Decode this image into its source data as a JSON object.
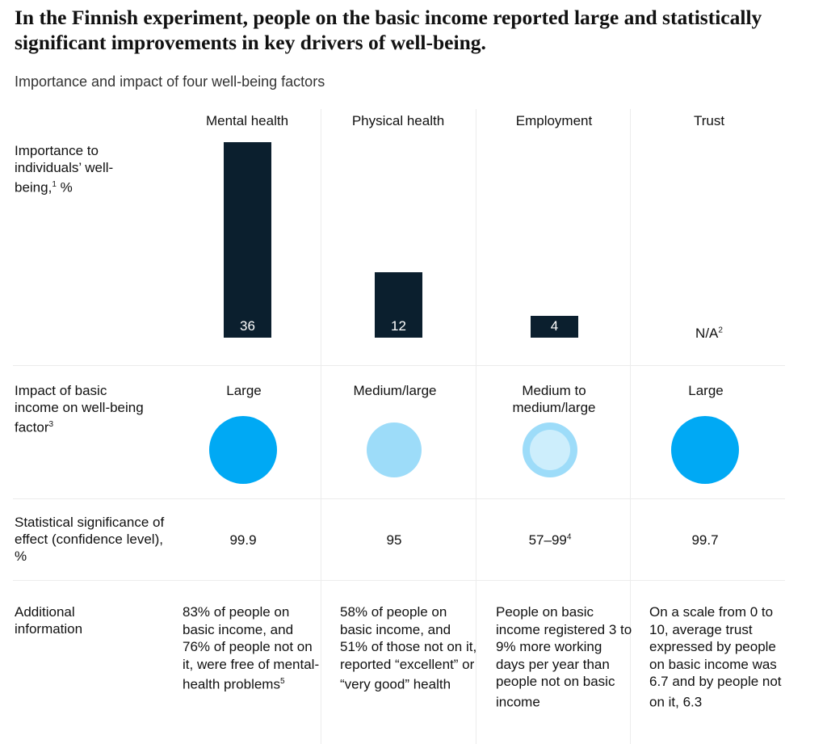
{
  "title": "In the Finnish experiment, people on the basic income reported large and statistically significant improvements in key drivers of well-being.",
  "subtitle": "Importance and impact of four well-being factors",
  "row_labels": {
    "importance": "Importance to individuals’ well-being,",
    "importance_sup": "1",
    "importance_unit": " %",
    "impact": "Impact of basic income on well-being factor",
    "impact_sup": "3",
    "significance": "Statistical significance of effect (confidence level), %",
    "additional": "Additional information"
  },
  "colors": {
    "bar": "#0b1f2e",
    "large": "#00a9f4",
    "medium_large": "#9ddcf9",
    "medium_inner": "#cdeefc"
  },
  "chart_data": {
    "type": "bar",
    "categories": [
      "Mental health",
      "Physical health",
      "Employment",
      "Trust"
    ],
    "values": [
      36,
      12,
      4,
      null
    ],
    "value_labels": [
      "36",
      "12",
      "4",
      "N/A"
    ],
    "na_sup": "2",
    "ylim": [
      0,
      36
    ],
    "impact": [
      {
        "label": "Large",
        "level": "large"
      },
      {
        "label": "Medium/large",
        "level": "medium_large"
      },
      {
        "label": "Medium to medium/large",
        "level": "medium_to_medium_large"
      },
      {
        "label": "Large",
        "level": "large"
      }
    ],
    "significance": [
      {
        "value": "99.9",
        "sup": ""
      },
      {
        "value": "95",
        "sup": ""
      },
      {
        "value": "57–99",
        "sup": "4"
      },
      {
        "value": "99.7",
        "sup": ""
      }
    ],
    "additional": [
      {
        "text": "83% of people on basic income, and 76% of people not on it, were free of mental-health problems",
        "sup": "5"
      },
      {
        "text": "58% of people on basic income, and 51% of those not on it, reported “excellent” or “very good” health",
        "sup": ""
      },
      {
        "text": "People on basic income registered 3 to 9% more working days per year than people not on basic income",
        "sup": ""
      },
      {
        "text": "On a scale from 0 to 10, average trust expressed by people on basic income was 6.7 and by people not on it, 6.3",
        "sup": ""
      }
    ]
  }
}
